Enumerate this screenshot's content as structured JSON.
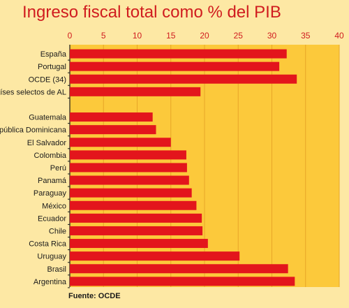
{
  "title": "Ingreso fiscal total como % del PIB",
  "source": "Fuente: OCDE",
  "colors": {
    "background": "#fde8a4",
    "plot_area": "#fcc93b",
    "bar": "#e3151c",
    "title": "#d01c1f",
    "tick_label": "#d01c1f"
  },
  "chart_data": {
    "type": "bar",
    "orientation": "horizontal",
    "xlim": [
      0,
      40
    ],
    "xticks": [
      "0",
      "5",
      "10",
      "15",
      "20",
      "25",
      "30",
      "35",
      "40"
    ],
    "xticks_position": "top",
    "grid": true,
    "groups": [
      {
        "categories": [
          "España",
          "Portugal",
          "OCDE (34)",
          "Países selectos de AL"
        ],
        "values": [
          32.2,
          31.1,
          33.7,
          19.4
        ]
      },
      {
        "categories": [
          "Guatemala",
          "República Dominicana",
          "El Salvador",
          "Colombia",
          "Perú",
          "Panamá",
          "Paraguay",
          "México",
          "Ecuador",
          "Chile",
          "Costa Rica",
          "Uruguay",
          "Brasil",
          "Argentina"
        ],
        "values": [
          12.3,
          12.8,
          15.0,
          17.3,
          17.4,
          17.7,
          18.1,
          18.8,
          19.6,
          19.7,
          20.5,
          25.2,
          32.4,
          33.4
        ]
      }
    ]
  }
}
